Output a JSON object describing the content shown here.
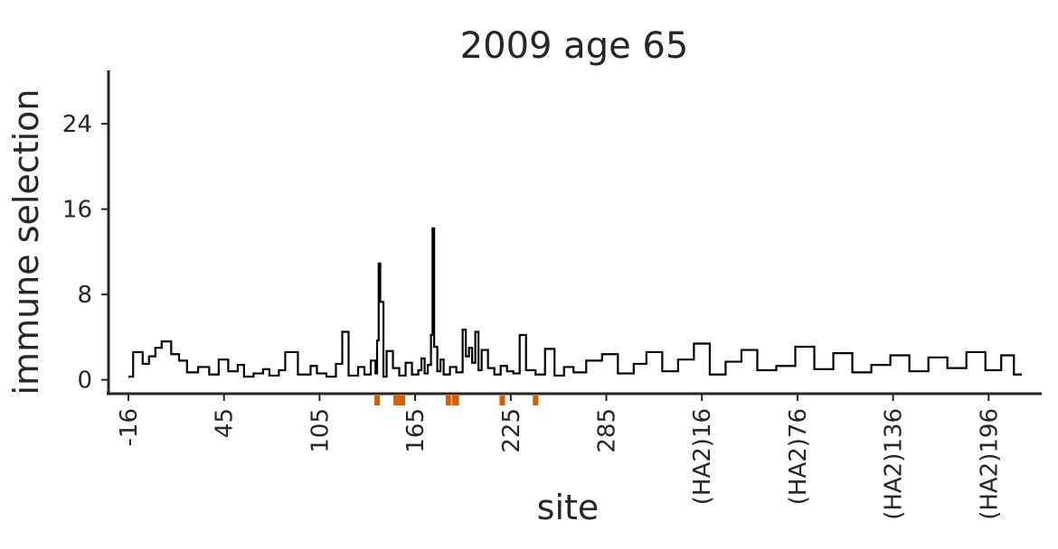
{
  "chart_data": {
    "type": "line",
    "title": "2009 age 65",
    "xlabel": "site",
    "ylabel": "immune selection",
    "ylim": [
      -1.3,
      29
    ],
    "yticks": [
      0,
      8,
      16,
      24
    ],
    "xtick_labels": [
      "-16",
      "45",
      "105",
      "165",
      "225",
      "285",
      "(HA2)16",
      "(HA2)76",
      "(HA2)136",
      "(HA2)196"
    ],
    "n_sites": 565,
    "series": [
      {
        "color": "#000000",
        "x": [
          1,
          4,
          10,
          14,
          18,
          22,
          28,
          33,
          38,
          45,
          52,
          58,
          64,
          70,
          74,
          80,
          86,
          90,
          96,
          100,
          108,
          116,
          120,
          126,
          132,
          136,
          140,
          146,
          150,
          154,
          157,
          158,
          159,
          160,
          162,
          164,
          168,
          172,
          176,
          180,
          184,
          186,
          188,
          190,
          192,
          193,
          194,
          196,
          198,
          200,
          204,
          208,
          212,
          214,
          216,
          218,
          220,
          222,
          224,
          228,
          232,
          236,
          240,
          244,
          248,
          252,
          258,
          264,
          270,
          276,
          282,
          290,
          300,
          310,
          320,
          328,
          338,
          348,
          358,
          368,
          378,
          388,
          398,
          410,
          422,
          434,
          446,
          458,
          470,
          482,
          494,
          506,
          518,
          530,
          542,
          552,
          560,
          565
        ],
        "y": [
          0.3,
          2.6,
          1.5,
          2.2,
          3.0,
          3.6,
          2.4,
          1.8,
          0.7,
          1.2,
          0.5,
          1.9,
          0.8,
          1.4,
          0.3,
          0.6,
          1.0,
          0.4,
          0.9,
          2.6,
          0.5,
          1.3,
          0.6,
          0.3,
          1.5,
          4.5,
          0.4,
          1.2,
          0.5,
          1.8,
          0.6,
          3.7,
          10.9,
          7.3,
          0.3,
          2.7,
          1.1,
          0.4,
          1.6,
          0.5,
          0.9,
          2.0,
          0.6,
          1.4,
          4.2,
          14.2,
          3.1,
          0.8,
          1.9,
          0.5,
          1.2,
          0.7,
          4.7,
          2.2,
          3.0,
          1.6,
          4.5,
          0.9,
          2.8,
          1.1,
          0.5,
          1.3,
          0.8,
          0.6,
          4.2,
          0.9,
          0.5,
          2.9,
          0.4,
          1.2,
          0.7,
          1.8,
          2.4,
          0.6,
          1.5,
          2.6,
          0.8,
          1.9,
          3.4,
          0.5,
          1.7,
          2.8,
          0.9,
          1.3,
          3.1,
          1.0,
          2.5,
          0.7,
          1.4,
          2.3,
          0.8,
          2.1,
          1.1,
          2.6,
          0.9,
          2.3,
          0.5,
          0.5
        ]
      }
    ],
    "highlight_sites": [
      158,
      170,
      172,
      174,
      203,
      207,
      208,
      237,
      258
    ],
    "highlight_color": "#d95f02"
  }
}
